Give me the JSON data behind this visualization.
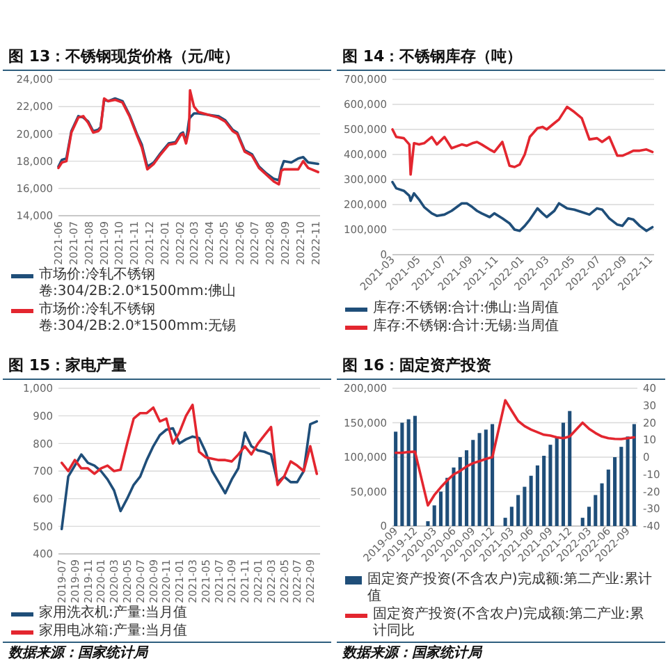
{
  "chart_data": [
    {
      "type": "line",
      "title": "图 13：不锈钢现货价格（元/吨）",
      "grid": "y",
      "legend": "bottom",
      "x": [
        "2021-06-01",
        "2021-06-08",
        "2021-06-17",
        "2021-06-27",
        "2021-07-11",
        "2021-07-21",
        "2021-07-31",
        "2021-08-10",
        "2021-08-20",
        "2021-08-25",
        "2021-09-01",
        "2021-09-09",
        "2021-09-23",
        "2021-10-08",
        "2021-10-22",
        "2021-11-06",
        "2021-11-16",
        "2021-11-27",
        "2021-12-10",
        "2021-12-24",
        "2022-01-09",
        "2022-01-23",
        "2022-02-02",
        "2022-02-07",
        "2022-02-13",
        "2022-02-19",
        "2022-02-21",
        "2022-03-01",
        "2022-03-10",
        "2022-03-30",
        "2022-04-19",
        "2022-05-03",
        "2022-05-18",
        "2022-05-27",
        "2022-06-11",
        "2022-06-26",
        "2022-07-10",
        "2022-07-25",
        "2022-08-09",
        "2022-08-19",
        "2022-08-24",
        "2022-08-29",
        "2022-09-13",
        "2022-09-27",
        "2022-10-07",
        "2022-10-17",
        "2022-11-06"
      ],
      "xlim": [
        "2021-06-01",
        "2022-11-10"
      ],
      "xticks": [
        "2021-06",
        "2021-07",
        "2021-08",
        "2021-09",
        "2021-10",
        "2021-11",
        "2021-12",
        "2022-01",
        "2022-02",
        "2022-03",
        "2022-04",
        "2022-05",
        "2022-06",
        "2022-07",
        "2022-08",
        "2022-09",
        "2022-10",
        "2022-11"
      ],
      "ylim": [
        14000,
        24000
      ],
      "yticks": [
        {
          "value": 14000,
          "label": "14,000"
        },
        {
          "value": 16000,
          "label": "16,000"
        },
        {
          "value": 18000,
          "label": "18,000"
        },
        {
          "value": 20000,
          "label": "20,000"
        },
        {
          "value": 22000,
          "label": "22,000"
        },
        {
          "value": 24000,
          "label": "24,000"
        }
      ],
      "series": [
        {
          "name": "市场价:冷轧不锈钢卷:304/2B:2.0*1500mm:佛山",
          "color": "#1f4e79",
          "values": [
            17600,
            18100,
            18200,
            20200,
            21300,
            21200,
            20900,
            20200,
            20300,
            20500,
            22500,
            22400,
            22600,
            22400,
            21400,
            20000,
            19200,
            17600,
            17900,
            18600,
            19300,
            19400,
            20000,
            20100,
            19400,
            21000,
            21200,
            21500,
            21500,
            21400,
            21300,
            21000,
            20300,
            20100,
            18800,
            18500,
            17600,
            17100,
            16700,
            16600,
            17500,
            18000,
            17900,
            18200,
            18300,
            17900,
            17800
          ]
        },
        {
          "name": "市场价:冷轧不锈钢卷:304/2B:2.0*1500mm:无锡",
          "color": "#e3262f",
          "values": [
            17500,
            17900,
            18000,
            20100,
            21200,
            21300,
            20800,
            20100,
            20200,
            20400,
            22600,
            22400,
            22500,
            22300,
            21300,
            19900,
            19000,
            17400,
            17800,
            18500,
            19200,
            19300,
            19900,
            20000,
            19300,
            20300,
            23200,
            22000,
            21600,
            21400,
            21200,
            20900,
            20200,
            20000,
            18700,
            18400,
            17500,
            17000,
            16500,
            16300,
            17300,
            17400,
            17400,
            17400,
            18000,
            17500,
            17200
          ]
        }
      ]
    },
    {
      "type": "line",
      "title": "图 14：不锈钢库存（吨）",
      "grid": "y",
      "legend": "bottom",
      "x": [
        "2021-03-01",
        "2021-03-10",
        "2021-03-28",
        "2021-04-10",
        "2021-04-13",
        "2021-04-21",
        "2021-05-03",
        "2021-05-15",
        "2021-06-02",
        "2021-06-14",
        "2021-07-02",
        "2021-07-19",
        "2021-08-12",
        "2021-08-24",
        "2021-09-06",
        "2021-09-17",
        "2021-09-28",
        "2021-10-17",
        "2021-10-28",
        "2021-11-16",
        "2021-12-03",
        "2021-12-15",
        "2021-12-27",
        "2022-01-08",
        "2022-01-20",
        "2022-02-07",
        "2022-02-19",
        "2022-03-01",
        "2022-03-19",
        "2022-03-30",
        "2022-04-18",
        "2022-05-05",
        "2022-05-23",
        "2022-06-10",
        "2022-06-28",
        "2022-07-10",
        "2022-07-27",
        "2022-08-15",
        "2022-08-27",
        "2022-09-10",
        "2022-09-22",
        "2022-10-07",
        "2022-10-23",
        "2022-11-06"
      ],
      "xlim": [
        "2021-03-01",
        "2022-11-10"
      ],
      "xticks": [
        "2021-03",
        "2021-05",
        "2021-07",
        "2021-09",
        "2021-11",
        "2022-01",
        "2022-03",
        "2022-05",
        "2022-07",
        "2022-09",
        "2022-11"
      ],
      "ylim": [
        0,
        700000
      ],
      "yticks": [
        0,
        {
          "value": 100000,
          "label": "100,000"
        },
        {
          "value": 200000,
          "label": "200,000"
        },
        {
          "value": 300000,
          "label": "300,000"
        },
        {
          "value": 400000,
          "label": "400,000"
        },
        {
          "value": 500000,
          "label": "500,000"
        },
        {
          "value": 600000,
          "label": "600,000"
        },
        {
          "value": 700000,
          "label": "700,000"
        }
      ],
      "series": [
        {
          "name": "库存:不锈钢:合计:佛山:当周值",
          "color": "#1f4e79",
          "values": [
            290000,
            265000,
            255000,
            235000,
            215000,
            245000,
            220000,
            190000,
            165000,
            155000,
            160000,
            175000,
            205000,
            205000,
            190000,
            175000,
            165000,
            150000,
            165000,
            145000,
            125000,
            100000,
            95000,
            115000,
            140000,
            185000,
            165000,
            150000,
            175000,
            205000,
            185000,
            180000,
            170000,
            160000,
            185000,
            180000,
            145000,
            120000,
            115000,
            145000,
            140000,
            115000,
            95000,
            110000
          ]
        },
        {
          "name": "库存:不锈钢:合计:无锡:当周值",
          "color": "#e3262f",
          "values": [
            500000,
            470000,
            465000,
            440000,
            320000,
            445000,
            440000,
            445000,
            470000,
            440000,
            470000,
            425000,
            440000,
            435000,
            445000,
            450000,
            440000,
            420000,
            410000,
            450000,
            355000,
            350000,
            360000,
            400000,
            470000,
            505000,
            510000,
            500000,
            525000,
            540000,
            590000,
            570000,
            545000,
            460000,
            465000,
            450000,
            470000,
            395000,
            395000,
            405000,
            415000,
            415000,
            420000,
            410000
          ]
        }
      ]
    },
    {
      "type": "line",
      "title": "图 15：家电产量",
      "grid": "y",
      "legend": "bottom",
      "categories": [
        "2019-07",
        null,
        "2019-09",
        null,
        "2019-11",
        null,
        "2020-01",
        null,
        "2020-03",
        null,
        "2020-05",
        null,
        "2020-07",
        null,
        "2020-09",
        null,
        "2020-11",
        null,
        "2021-01",
        null,
        "2021-03",
        null,
        "2021-05",
        null,
        "2021-07",
        null,
        "2021-09",
        null,
        "2021-11",
        null,
        "2022-01",
        null,
        "2022-03",
        null,
        "2022-05",
        null,
        "2022-07",
        null,
        "2022-09",
        null
      ],
      "ylim": [
        400,
        1000
      ],
      "yticks": [
        400,
        500,
        600,
        700,
        800,
        900,
        {
          "value": 1000,
          "label": "1,000"
        }
      ],
      "series": [
        {
          "name": "家用洗衣机:产量:当月值",
          "color": "#1f4e79",
          "values": [
            490,
            680,
            720,
            760,
            730,
            720,
            700,
            670,
            630,
            555,
            600,
            650,
            680,
            740,
            790,
            830,
            850,
            855,
            800,
            815,
            825,
            820,
            770,
            700,
            660,
            620,
            670,
            710,
            840,
            790,
            775,
            770,
            760,
            660,
            680,
            660,
            660,
            700,
            870,
            880
          ]
        },
        {
          "name": "家用电冰箱:产量:当月值",
          "color": "#e3262f",
          "values": [
            730,
            700,
            740,
            710,
            710,
            690,
            710,
            720,
            700,
            705,
            800,
            890,
            910,
            910,
            930,
            880,
            890,
            800,
            840,
            900,
            940,
            770,
            750,
            745,
            740,
            740,
            735,
            760,
            790,
            760,
            800,
            830,
            860,
            650,
            680,
            735,
            720,
            700,
            790,
            690
          ]
        }
      ],
      "annotations": [
        "数据来源：国家统计局"
      ]
    },
    {
      "type": "bar",
      "title": "图 16：固定资产投资",
      "grid": "y",
      "legend": "bottom",
      "categories": [
        "2019-09",
        null,
        null,
        "2019-12",
        null,
        null,
        "2020-03",
        null,
        null,
        "2020-06",
        null,
        null,
        "2020-09",
        null,
        null,
        "2020-12",
        null,
        null,
        "2021-03",
        null,
        null,
        "2021-06",
        null,
        null,
        "2021-09",
        null,
        null,
        "2021-12",
        null,
        null,
        "2022-03",
        null,
        null,
        "2022-06",
        null,
        null,
        "2022-09",
        null
      ],
      "ylim": [
        0,
        200000
      ],
      "yticks": [
        0,
        {
          "value": 50000,
          "label": "50,000"
        },
        {
          "value": 100000,
          "label": "100,000"
        },
        {
          "value": 150000,
          "label": "150,000"
        },
        {
          "value": 200000,
          "label": "200,000"
        }
      ],
      "y2lim": [
        -40,
        40
      ],
      "y2ticks": [
        -40,
        -30,
        -20,
        -10,
        0,
        10,
        20,
        30,
        40
      ],
      "series": [
        {
          "name": "固定资产投资(不含农户)完成额:第二产业:累计值",
          "color": "#1f4e79",
          "values": [
            137000,
            150000,
            155000,
            160000,
            null,
            7000,
            30000,
            50000,
            70000,
            85000,
            100000,
            110000,
            125000,
            135000,
            140000,
            148000,
            null,
            12000,
            28000,
            45000,
            57000,
            73000,
            88000,
            102000,
            118000,
            130000,
            150000,
            167000,
            null,
            12000,
            28000,
            45000,
            62000,
            82000,
            100000,
            115000,
            130000,
            148000
          ]
        },
        {
          "name": "固定资产投资(不含农户)完成额:第二产业:累计同比",
          "type": "line",
          "axis": "y2",
          "color": "#e3262f",
          "values": [
            2.5,
            2.5,
            3,
            3.2,
            null,
            -28,
            -22,
            -17.5,
            -13.5,
            -10,
            -8,
            -5.4,
            -3.5,
            -2.3,
            -1,
            0,
            null,
            33,
            27,
            21,
            18,
            16,
            14.5,
            13,
            12.5,
            11.5,
            11,
            12,
            null,
            20,
            16.5,
            14,
            12,
            11,
            10.6,
            10.5,
            11,
            11.5
          ]
        }
      ],
      "annotations": [
        "数据来源：国家统计局"
      ]
    }
  ]
}
